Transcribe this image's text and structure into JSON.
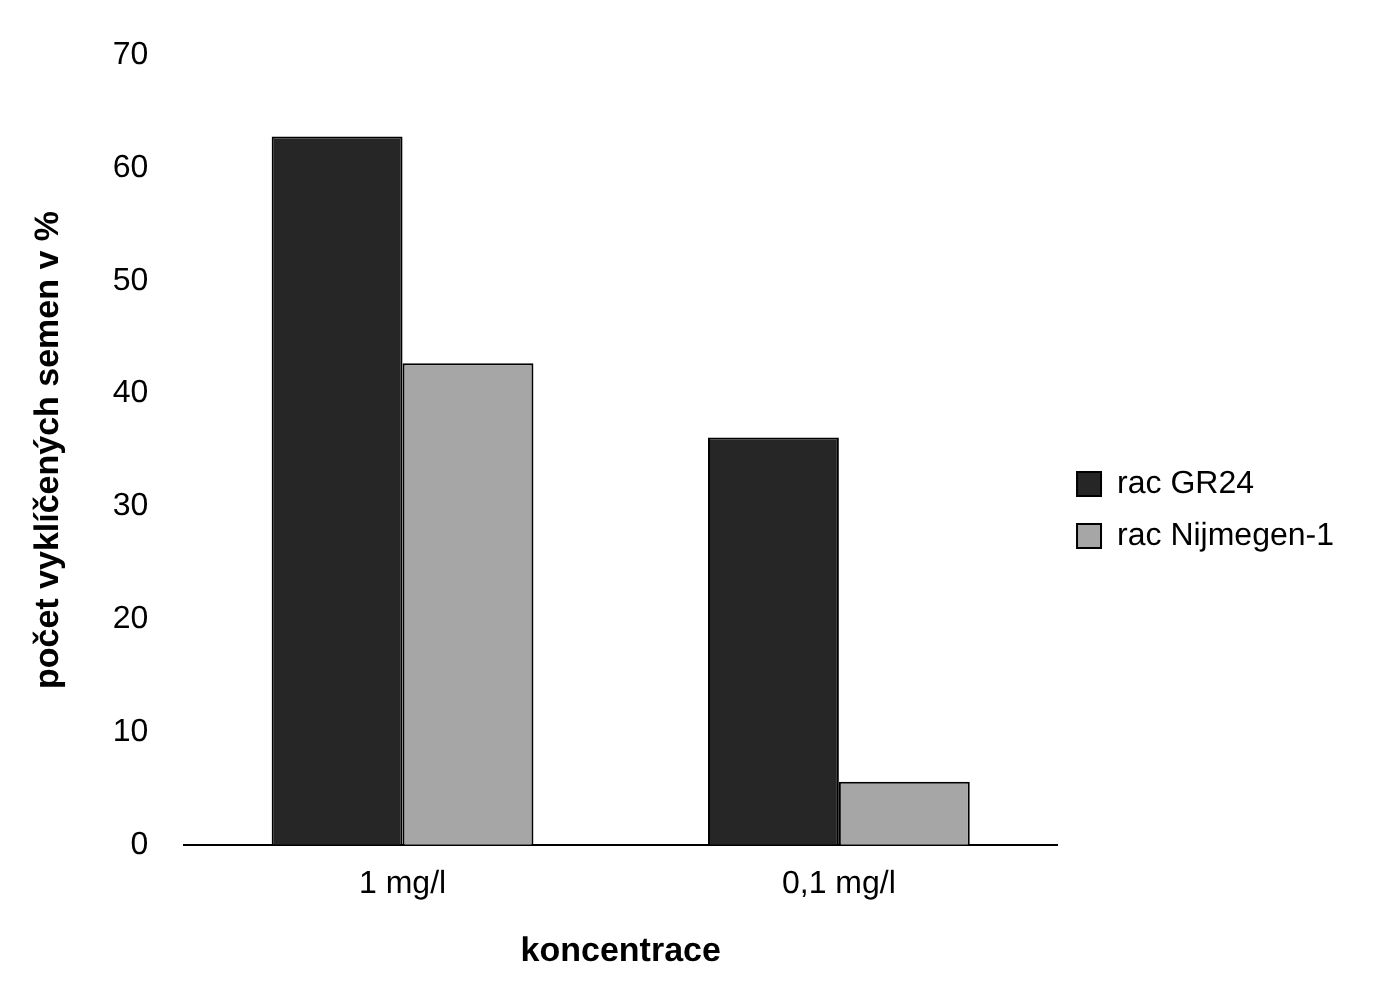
{
  "chart_data": {
    "type": "bar",
    "xlabel": "koncentrace",
    "ylabel": "počet vyklíčených semen v %",
    "categories": [
      "1 mg/l",
      "0,1 mg/l"
    ],
    "series": [
      {
        "name": "rac GR24",
        "color": "#262626",
        "values": [
          62.8,
          36.1
        ]
      },
      {
        "name": "rac Nijmegen-1",
        "color": "#a6a6a6",
        "values": [
          42.7,
          5.6
        ]
      }
    ],
    "ylim": [
      0,
      70
    ],
    "yticks": [
      0,
      10,
      20,
      30,
      40,
      50,
      60,
      70
    ],
    "grid": false,
    "legend": "right"
  }
}
